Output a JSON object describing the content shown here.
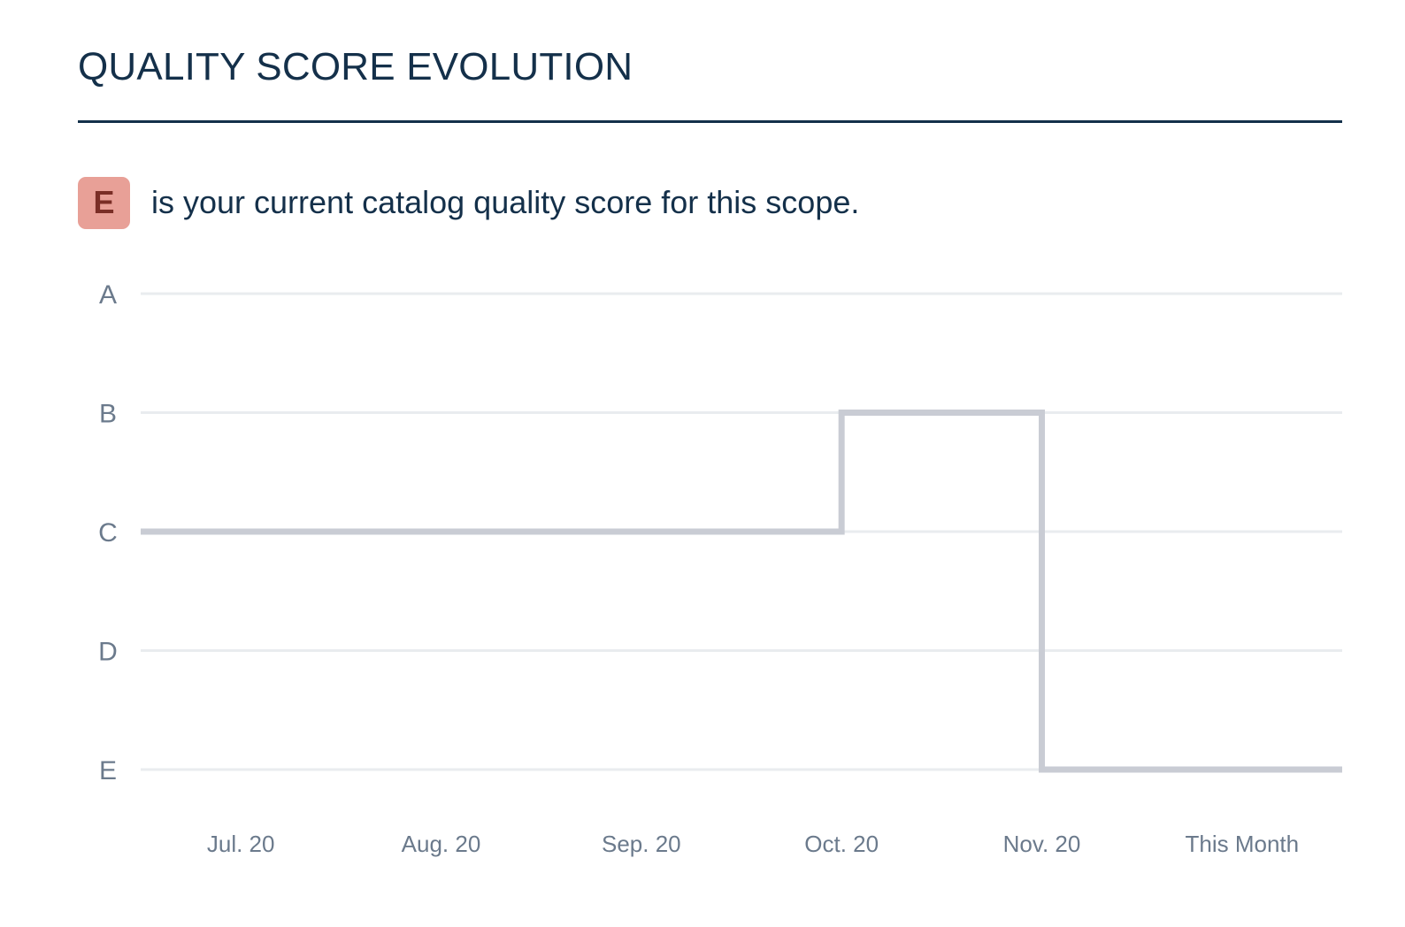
{
  "section": {
    "title": "QUALITY SCORE EVOLUTION"
  },
  "current_score": {
    "grade": "E",
    "text": "is your current catalog quality score for this scope."
  },
  "colors": {
    "title": "#14304a",
    "badge_bg": "#e8a097",
    "badge_text": "#7a2e26",
    "grid": "#e9ecef",
    "line": "#c9ccd4",
    "axis_text": "#6b7a8c"
  },
  "chart_data": {
    "type": "line",
    "step": true,
    "title": "",
    "xlabel": "",
    "ylabel": "",
    "categories": [
      "Jul. 20",
      "Aug. 20",
      "Sep. 20",
      "Oct. 20",
      "Nov. 20",
      "This Month"
    ],
    "y_levels": [
      "A",
      "B",
      "C",
      "D",
      "E"
    ],
    "series": [
      {
        "values": [
          "C",
          "C",
          "C",
          "C",
          "B",
          "E"
        ]
      }
    ],
    "grid": true,
    "legend": "none"
  }
}
